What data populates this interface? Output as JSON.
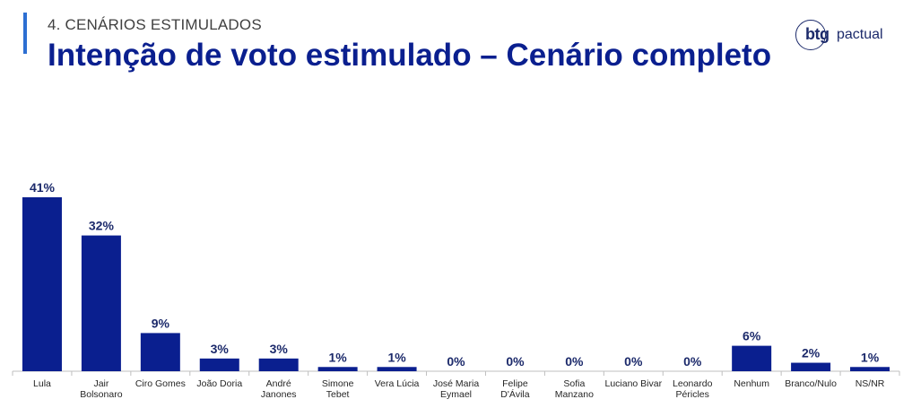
{
  "header": {
    "section_label": "4. CENÁRIOS ESTIMULADOS",
    "title": "Intenção de voto estimulado – Cenário completo"
  },
  "logo": {
    "bold_text": "btg",
    "light_text": "pactual"
  },
  "colors": {
    "bar": "#0a1f8f",
    "title": "#0a1f8f",
    "accent": "#2d6fd2"
  },
  "chart_data": {
    "type": "bar",
    "categories": [
      [
        "Lula"
      ],
      [
        "Jair",
        "Bolsonaro"
      ],
      [
        "Ciro Gomes"
      ],
      [
        "João Doria"
      ],
      [
        "André",
        "Janones"
      ],
      [
        "Simone",
        "Tebet"
      ],
      [
        "Vera Lúcia"
      ],
      [
        "José Maria",
        "Eymael"
      ],
      [
        "Felipe",
        "D'Ávila"
      ],
      [
        "Sofia",
        "Manzano"
      ],
      [
        "Luciano Bivar"
      ],
      [
        "Leonardo",
        "Péricles"
      ],
      [
        "Nenhum"
      ],
      [
        "Branco/Nulo"
      ],
      [
        "NS/NR"
      ]
    ],
    "values": [
      41,
      32,
      9,
      3,
      3,
      1,
      1,
      0,
      0,
      0,
      0,
      0,
      6,
      2,
      1
    ],
    "value_labels": [
      "41%",
      "32%",
      "9%",
      "3%",
      "3%",
      "1%",
      "1%",
      "0%",
      "0%",
      "0%",
      "0%",
      "0%",
      "6%",
      "2%",
      "1%"
    ],
    "title": "Intenção de voto estimulado – Cenário completo",
    "ylim": [
      0,
      41
    ],
    "grid": false,
    "legend": "none"
  }
}
